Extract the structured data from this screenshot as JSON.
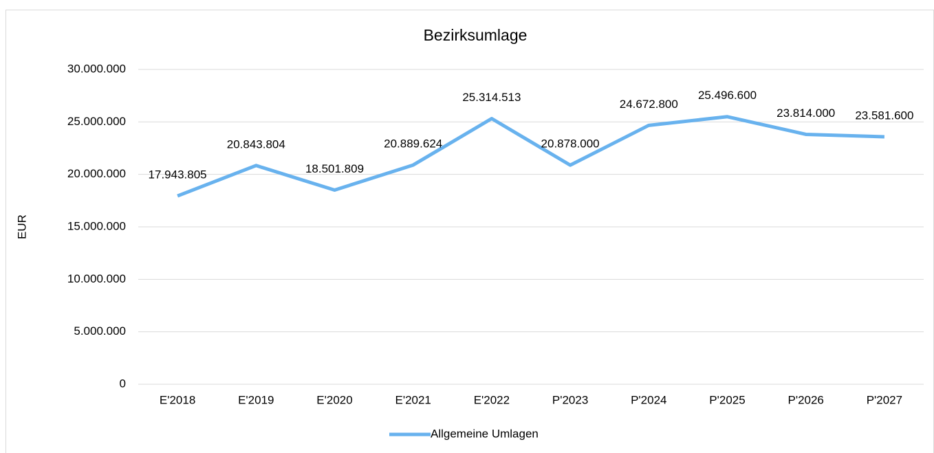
{
  "chart_data": {
    "type": "line",
    "title": "Bezirksumlage",
    "y_label": "EUR",
    "categories": [
      "E'2018",
      "E'2019",
      "E'2020",
      "E'2021",
      "E'2022",
      "P'2023",
      "P'2024",
      "P'2025",
      "P'2026",
      "P'2027"
    ],
    "series": [
      {
        "name": "Allgemeine Umlagen",
        "color": "#68b2ee",
        "values": [
          17943805,
          20843804,
          18501809,
          20889624,
          25314513,
          20878000,
          24672800,
          25496600,
          23814000,
          23581600
        ],
        "value_labels": [
          "17.943.805",
          "20.843.804",
          "18.501.809",
          "20.889.624",
          "25.314.513",
          "20.878.000",
          "24.672.800",
          "25.496.600",
          "23.814.000",
          "23.581.600"
        ]
      }
    ],
    "ylim": [
      0,
      30000000
    ],
    "yticks": [
      0,
      {
        "value": 5000000,
        "label": "5.000.000"
      },
      {
        "value": 10000000,
        "label": "10.000.000"
      },
      {
        "value": 15000000,
        "label": "15.000.000"
      },
      {
        "value": 20000000,
        "label": "20.000.000"
      },
      {
        "value": 25000000,
        "label": "25.000.000"
      },
      {
        "value": 30000000,
        "label": "30.000.000"
      }
    ],
    "grid": true,
    "legend": "bottom"
  }
}
